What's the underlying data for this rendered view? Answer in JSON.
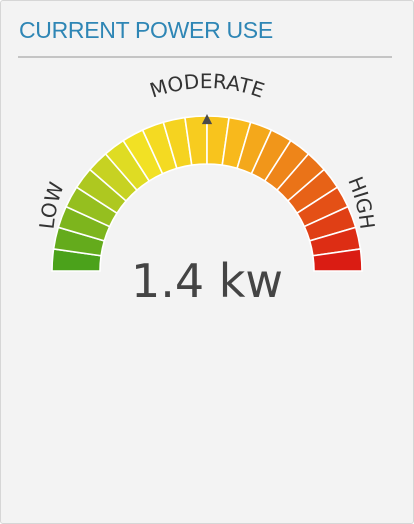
{
  "widget": {
    "title": "CURRENT POWER USE",
    "reading_value": "1.4",
    "reading_unit": "kw",
    "reading_text": "1.4 kw"
  },
  "gauge": {
    "labels": {
      "low": "LOW",
      "moderate": "MODERATE",
      "high": "HIGH"
    },
    "segment_count": 22,
    "needle_fraction": 0.5,
    "colors": {
      "title": "#2e86b5",
      "low": "#3f9d1a",
      "mid": "#f2e324",
      "moderate": "#f9c01c",
      "high": "#d81313",
      "needle": "#4a4a4a"
    }
  }
}
